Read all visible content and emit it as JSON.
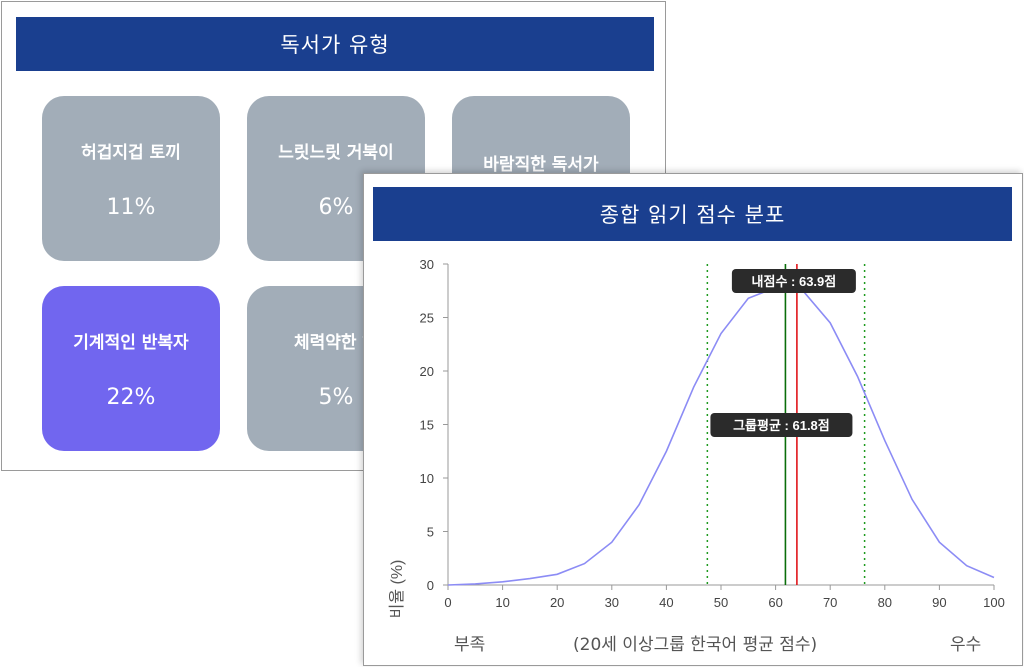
{
  "colors": {
    "header_bg": "#1a3f8f",
    "tile_bg": "#a2adb8",
    "tile_selected_bg": "#7166ef",
    "curve": "#8c8cf5",
    "my_score_line": "#e0151b",
    "group_avg_line": "#0a6e0a",
    "std_dev_line": "#1f9a1f"
  },
  "reader_types": {
    "title": "독서가 유형",
    "tiles": [
      {
        "name": "허겁지겁 토끼",
        "percent": "11%",
        "selected": false
      },
      {
        "name": "느릿느릿 거북이",
        "percent": "6%",
        "selected": false
      },
      {
        "name": "바람직한 독서가",
        "percent": "",
        "selected": false
      },
      {
        "name": "기계적인 반복자",
        "percent": "22%",
        "selected": true
      },
      {
        "name": "체력약한 하",
        "percent": "5%",
        "selected": false
      }
    ]
  },
  "score_distribution": {
    "title": "종합 읽기 점수 분포",
    "ylabel": "비율 (%)",
    "my_score_label": "내점수 : 63.9점",
    "group_avg_label": "그룹평균 : 61.8점",
    "bottom_left": "부족",
    "bottom_center": "(20세 이상그룹 한국어 평균 점수)",
    "bottom_right": "우수"
  },
  "chart_data": {
    "type": "line",
    "xlim": [
      0,
      100
    ],
    "ylim": [
      0,
      30
    ],
    "x_ticks": [
      "0",
      "10",
      "20",
      "30",
      "40",
      "50",
      "60",
      "70",
      "80",
      "90",
      "100"
    ],
    "y_ticks": [
      "0",
      "5",
      "10",
      "15",
      "20",
      "25",
      "30"
    ],
    "x": [
      0,
      5,
      10,
      15,
      20,
      25,
      30,
      35,
      40,
      45,
      50,
      55,
      60,
      62,
      65,
      70,
      75,
      80,
      85,
      90,
      95,
      100
    ],
    "y": [
      0.0,
      0.1,
      0.3,
      0.6,
      1.0,
      2.0,
      4.0,
      7.5,
      12.5,
      18.5,
      23.5,
      26.8,
      27.8,
      27.9,
      27.5,
      24.5,
      19.5,
      13.5,
      8.0,
      4.0,
      1.8,
      0.7
    ],
    "my_score": 63.9,
    "group_avg": 61.8,
    "std_lines": [
      47.5,
      76.3
    ],
    "grid": false
  }
}
